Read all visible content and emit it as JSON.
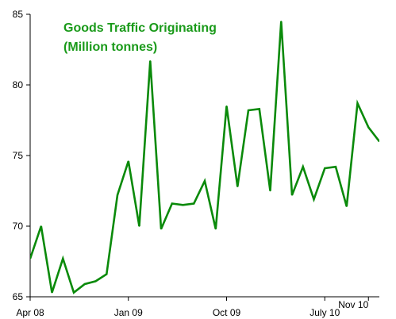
{
  "chart_data": {
    "type": "line",
    "title": "Goods Traffic Originating",
    "subtitle": "(Million tonnes)",
    "xlabel": "",
    "ylabel": "",
    "ylim": [
      65,
      85
    ],
    "y_ticks": [
      65,
      70,
      75,
      80,
      85
    ],
    "x_tick_labels": [
      "Apr 08",
      "Jan 09",
      "Oct 09",
      "July 10",
      "Nov 10"
    ],
    "x_tick_months": [
      "2008-04",
      "2009-01",
      "2009-10",
      "2010-07",
      "2010-11"
    ],
    "grid": false,
    "legend": "none",
    "series": [
      {
        "x": [
          "2008-04",
          "2008-05",
          "2008-06",
          "2008-07",
          "2008-08",
          "2008-09",
          "2008-10",
          "2008-11",
          "2008-12",
          "2009-01",
          "2009-02",
          "2009-03",
          "2009-04",
          "2009-05",
          "2009-06",
          "2009-07",
          "2009-08",
          "2009-09",
          "2009-10",
          "2009-11",
          "2009-12",
          "2010-01",
          "2010-02",
          "2010-03",
          "2010-04",
          "2010-05",
          "2010-06",
          "2010-07",
          "2010-08",
          "2010-09",
          "2010-10",
          "2010-11",
          "2010-12"
        ],
        "values": [
          67.7,
          70.0,
          65.3,
          67.7,
          65.3,
          65.9,
          66.1,
          66.6,
          72.2,
          74.6,
          70.0,
          81.7,
          69.8,
          71.6,
          71.5,
          71.6,
          73.2,
          69.8,
          78.5,
          72.8,
          78.2,
          78.3,
          72.5,
          84.5,
          72.2,
          74.2,
          71.9,
          74.1,
          74.2,
          71.4,
          78.7,
          77.0,
          76.0
        ]
      }
    ],
    "line_color": "#0a8a0a",
    "title_color": "#1a9a1a",
    "axis_color": "#000000"
  }
}
